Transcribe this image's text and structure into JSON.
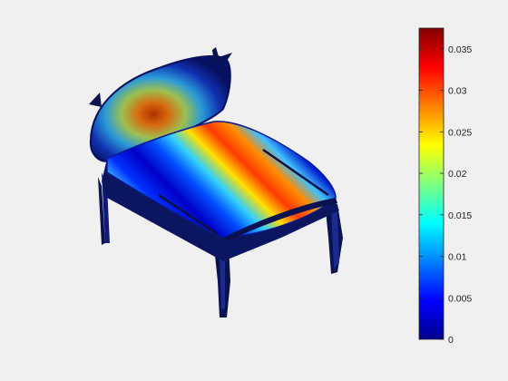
{
  "figure": {
    "background": "#f0f0f0",
    "subject": "chair-shaped 3D mesh surface colored by scalar field"
  },
  "colorbar": {
    "colormap": "jet",
    "min": 0,
    "max": 0.0375,
    "ticks": [
      {
        "value": 0.035,
        "label": "0.035"
      },
      {
        "value": 0.03,
        "label": "0.03"
      },
      {
        "value": 0.025,
        "label": "0.025"
      },
      {
        "value": 0.02,
        "label": "0.02"
      },
      {
        "value": 0.015,
        "label": "0.015"
      },
      {
        "value": 0.01,
        "label": "0.01"
      },
      {
        "value": 0.005,
        "label": "0.005"
      },
      {
        "value": 0,
        "label": "0"
      }
    ]
  },
  "colors": {
    "jet_dark_blue": "#00008f",
    "jet_blue": "#0000ff",
    "jet_cyan": "#00ffff",
    "jet_yellow": "#ffff00",
    "jet_red": "#ff0000",
    "jet_dark_red": "#800000",
    "frame_navy": "#0a1250"
  }
}
